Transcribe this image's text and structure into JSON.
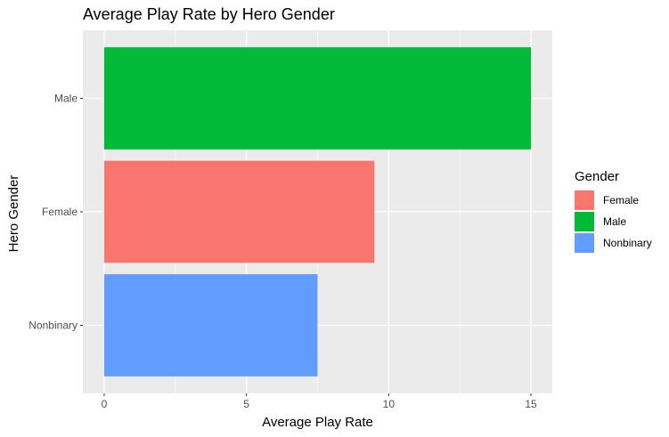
{
  "chart_data": {
    "type": "bar",
    "orientation": "horizontal",
    "title": "Average Play Rate by Hero Gender",
    "xlabel": "Average Play Rate",
    "ylabel": "Hero Gender",
    "categories": [
      "Male",
      "Female",
      "Nonbinary"
    ],
    "values": [
      15.0,
      9.5,
      7.5
    ],
    "bar_colors": [
      "#00BA38",
      "#F8766D",
      "#619CFF"
    ],
    "xlim": [
      -0.75,
      15.75
    ],
    "xticks": [
      0,
      5,
      10,
      15
    ],
    "xtick_labels": [
      "0",
      "5",
      "10",
      "15"
    ],
    "grid": true,
    "panel_background": "#EBEBEB",
    "legend": {
      "title": "Gender",
      "position": "right",
      "entries": [
        {
          "label": "Female",
          "color": "#F8766D"
        },
        {
          "label": "Male",
          "color": "#00BA38"
        },
        {
          "label": "Nonbinary",
          "color": "#619CFF"
        }
      ]
    }
  }
}
